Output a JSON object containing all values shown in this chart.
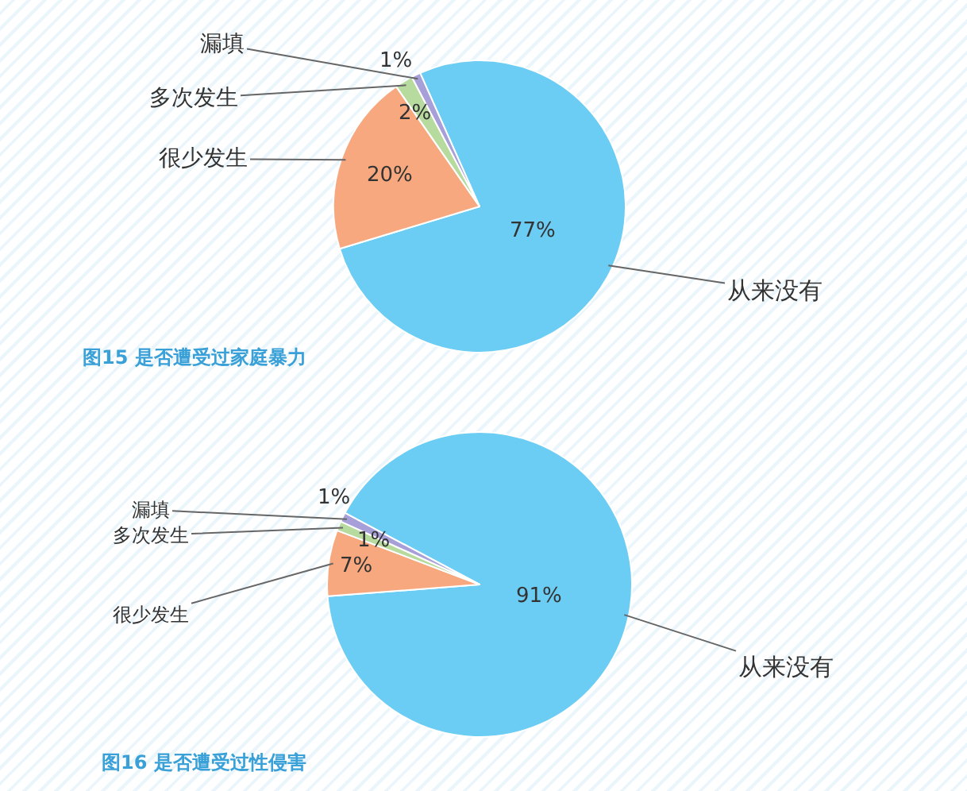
{
  "chart_data": [
    {
      "type": "pie",
      "title": "图15 是否遭受过家庭暴力",
      "categories": [
        "从来没有",
        "很少发生",
        "多次发生",
        "漏填"
      ],
      "values": [
        77,
        20,
        2,
        1
      ],
      "value_labels": [
        "77%",
        "20%",
        "2%",
        "1%"
      ],
      "colors": [
        "#6ccdf4",
        "#f7a87e",
        "#b7da9e",
        "#a79fd8"
      ]
    },
    {
      "type": "pie",
      "title": "图16 是否遭受过性侵害",
      "categories": [
        "从来没有",
        "很少发生",
        "多次发生",
        "漏填"
      ],
      "values": [
        91,
        7,
        1,
        1
      ],
      "value_labels": [
        "91%",
        "7%",
        "1%",
        "1%"
      ],
      "colors": [
        "#6ccdf4",
        "#f7a87e",
        "#b7da9e",
        "#a79fd8"
      ]
    }
  ]
}
